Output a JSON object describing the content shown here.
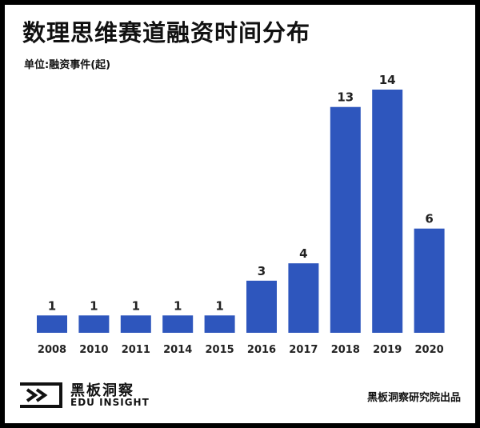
{
  "header": {
    "title": "数理思维赛道融资时间分布",
    "unit": "单位:融资事件(起)"
  },
  "chart_data": {
    "type": "bar",
    "categories": [
      "2008",
      "2010",
      "2011",
      "2014",
      "2015",
      "2016",
      "2017",
      "2018",
      "2019",
      "2020"
    ],
    "values": [
      1,
      1,
      1,
      1,
      1,
      3,
      4,
      13,
      14,
      6
    ],
    "title": "数理思维赛道融资时间分布",
    "xlabel": "",
    "ylabel": "单位:融资事件(起)",
    "ylim": [
      0,
      14
    ],
    "grid": false,
    "legend": "none",
    "bar_color": "#2e56bd"
  },
  "footer": {
    "logo_cn": "黑板洞察",
    "logo_en": "EDU INSIGHT",
    "source": "黑板洞察研究院出品"
  },
  "colors": {
    "bar": "#2e56bd",
    "text": "#222222",
    "frame": "#000000"
  }
}
